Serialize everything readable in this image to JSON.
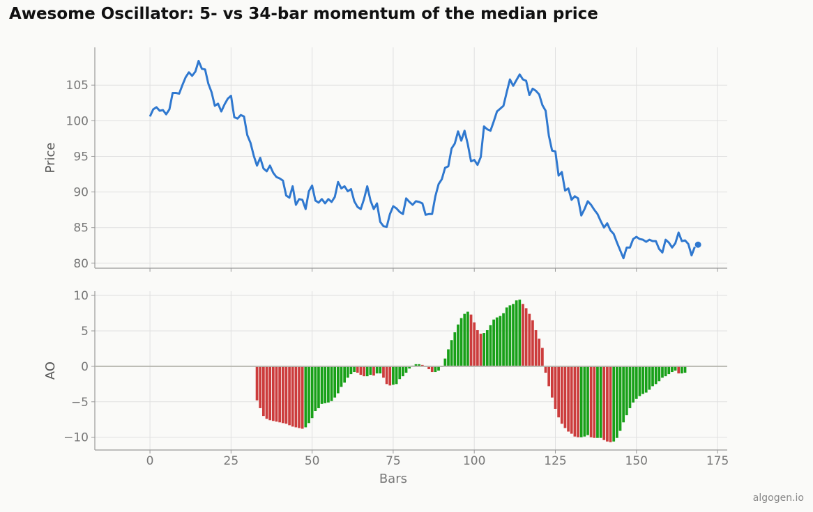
{
  "title": "Awesome Oscillator: 5- vs 34-bar momentum of the median price",
  "watermark": "algogen.io",
  "colors": {
    "price_line": "#2f78cf",
    "ao_up": "#18a018",
    "ao_down": "#cc3c3c",
    "grid": "#e0e0e0",
    "zero_line": "#b8b8b0"
  },
  "chart_data": [
    {
      "type": "line",
      "panel": "price",
      "title": "",
      "xlabel": "",
      "ylabel": "Price",
      "xlim": [
        -17,
        178
      ],
      "ylim": [
        79.3,
        110.3
      ],
      "yticks": [
        80,
        85,
        90,
        95,
        100,
        105
      ],
      "grid": true,
      "series": [
        {
          "color": "#2f78cf",
          "x_start": 0,
          "values": [
            100.6,
            101.6,
            101.9,
            101.4,
            101.5,
            100.9,
            101.6,
            103.9,
            103.9,
            103.8,
            105.0,
            106.1,
            106.8,
            106.3,
            106.9,
            108.4,
            107.3,
            107.2,
            105.2,
            104.0,
            102.1,
            102.4,
            101.3,
            102.3,
            103.1,
            103.5,
            100.5,
            100.3,
            100.8,
            100.6,
            98.0,
            96.9,
            95.1,
            93.7,
            94.8,
            93.3,
            92.9,
            93.7,
            92.7,
            92.1,
            91.9,
            91.6,
            89.5,
            89.2,
            90.8,
            88.2,
            89.0,
            88.9,
            87.6,
            90.1,
            90.9,
            88.8,
            88.5,
            89.0,
            88.4,
            89.0,
            88.6,
            89.3,
            91.4,
            90.5,
            90.8,
            90.1,
            90.4,
            88.7,
            87.9,
            87.6,
            89.0,
            90.8,
            88.8,
            87.6,
            88.4,
            85.8,
            85.2,
            85.1,
            86.9,
            88.0,
            87.7,
            87.2,
            86.9,
            89.1,
            88.6,
            88.2,
            88.7,
            88.6,
            88.4,
            86.8,
            86.9,
            86.9,
            89.4,
            91.1,
            91.8,
            93.4,
            93.6,
            96.1,
            96.8,
            98.5,
            97.2,
            98.6,
            96.7,
            94.3,
            94.5,
            93.8,
            94.9,
            99.2,
            98.8,
            98.6,
            99.9,
            101.3,
            101.7,
            102.1,
            104.0,
            105.8,
            104.9,
            105.7,
            106.5,
            105.8,
            105.6,
            103.6,
            104.5,
            104.2,
            103.7,
            102.2,
            101.4,
            97.9,
            95.8,
            95.7,
            92.3,
            92.8,
            90.2,
            90.5,
            88.9,
            89.4,
            89.1,
            86.7,
            87.6,
            88.7,
            88.2,
            87.5,
            86.9,
            85.9,
            85.0,
            85.6,
            84.6,
            84.1,
            82.9,
            81.8,
            80.7,
            82.2,
            82.2,
            83.4,
            83.7,
            83.4,
            83.3,
            83.0,
            83.3,
            83.1,
            83.1,
            82.0,
            81.5,
            83.3,
            82.9,
            82.2,
            82.8,
            84.3,
            83.1,
            83.2,
            82.7,
            81.1,
            82.3
          ],
          "last_point": {
            "x": 169,
            "y": 82.6
          }
        }
      ]
    },
    {
      "type": "bar",
      "panel": "ao",
      "title": "",
      "xlabel": "Bars",
      "ylabel": "AO",
      "xlim": [
        -17,
        178
      ],
      "ylim": [
        -11.8,
        10.6
      ],
      "yticks": [
        -10,
        -5,
        0,
        5,
        10
      ],
      "xticks": [
        0,
        25,
        50,
        75,
        100,
        125,
        150,
        175
      ],
      "grid": true,
      "x_start": 33,
      "values": [
        -4.8,
        -5.9,
        -7.0,
        -7.4,
        -7.6,
        -7.7,
        -7.8,
        -7.9,
        -8.0,
        -8.1,
        -8.3,
        -8.5,
        -8.6,
        -8.7,
        -8.8,
        -8.6,
        -8.0,
        -7.3,
        -6.3,
        -5.9,
        -5.3,
        -5.2,
        -5.1,
        -4.9,
        -4.4,
        -3.8,
        -2.9,
        -2.3,
        -1.6,
        -1.1,
        -0.8,
        -0.9,
        -1.2,
        -1.4,
        -1.4,
        -1.2,
        -1.3,
        -1.0,
        -1.0,
        -1.6,
        -2.5,
        -2.7,
        -2.6,
        -2.5,
        -1.8,
        -1.4,
        -0.9,
        -0.3,
        0.1,
        0.3,
        0.3,
        0.2,
        -0.1,
        -0.4,
        -0.8,
        -0.8,
        -0.6,
        -0.1,
        1.1,
        2.4,
        3.7,
        4.8,
        5.9,
        6.8,
        7.4,
        7.7,
        7.3,
        6.2,
        5.1,
        4.6,
        4.7,
        5.1,
        5.8,
        6.6,
        6.9,
        7.1,
        7.5,
        8.3,
        8.6,
        8.8,
        9.3,
        9.4,
        8.8,
        8.2,
        7.4,
        6.5,
        5.1,
        3.9,
        2.6,
        -0.9,
        -2.8,
        -4.4,
        -6.0,
        -7.2,
        -8.1,
        -8.7,
        -9.2,
        -9.5,
        -9.9,
        -10.0,
        -10.0,
        -9.9,
        -9.7,
        -10.0,
        -10.1,
        -10.1,
        -10.1,
        -10.4,
        -10.6,
        -10.7,
        -10.6,
        -10.1,
        -9.1,
        -7.9,
        -6.9,
        -5.9,
        -5.1,
        -4.6,
        -4.2,
        -3.9,
        -3.7,
        -3.3,
        -2.8,
        -2.5,
        -2.1,
        -1.6,
        -1.4,
        -1.1,
        -0.8,
        -0.6,
        -1.0,
        -1.0,
        -0.9
      ]
    }
  ]
}
